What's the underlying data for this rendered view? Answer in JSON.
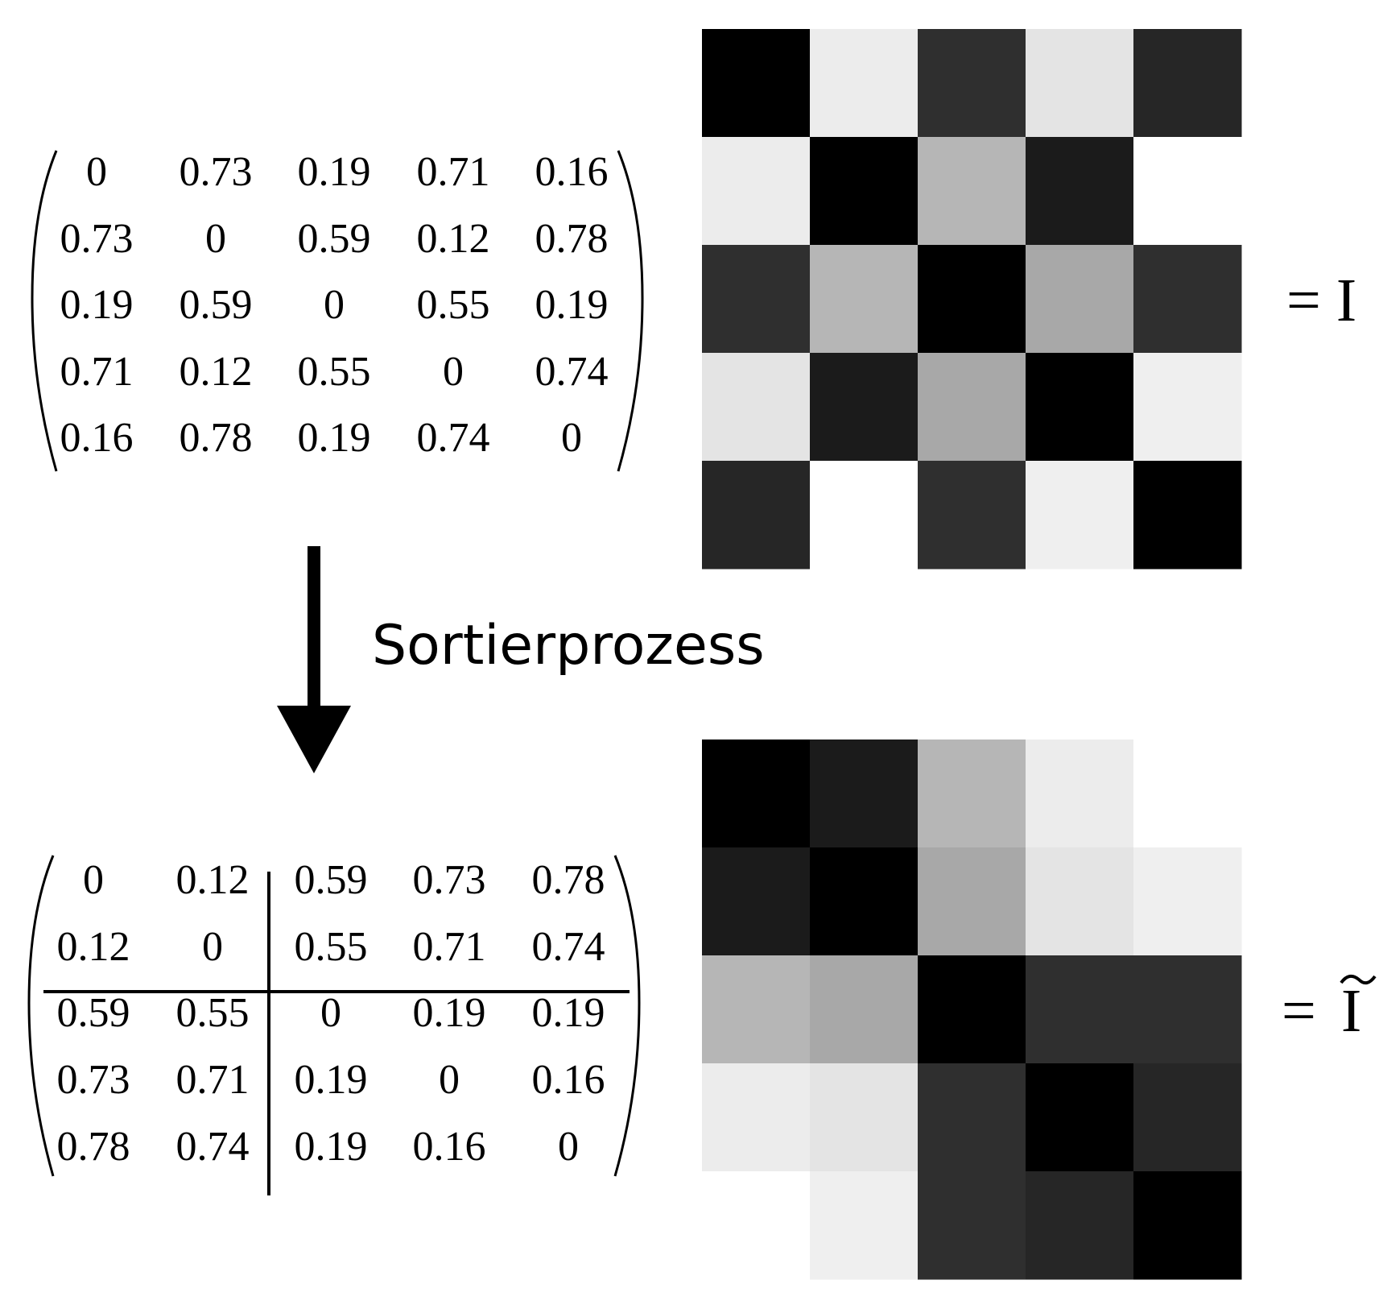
{
  "top_matrix": {
    "rows": [
      [
        "0",
        "0.73",
        "0.19",
        "0.71",
        "0.16"
      ],
      [
        "0.73",
        "0",
        "0.59",
        "0.12",
        "0.78"
      ],
      [
        "0.19",
        "0.59",
        "0",
        "0.55",
        "0.19"
      ],
      [
        "0.71",
        "0.12",
        "0.55",
        "0",
        "0.74"
      ],
      [
        "0.16",
        "0.78",
        "0.19",
        "0.74",
        "0"
      ]
    ]
  },
  "bottom_matrix": {
    "rows": [
      [
        "0",
        "0.12",
        "0.59",
        "0.73",
        "0.78"
      ],
      [
        "0.12",
        "0",
        "0.55",
        "0.71",
        "0.74"
      ],
      [
        "0.59",
        "0.55",
        "0",
        "0.19",
        "0.19"
      ],
      [
        "0.73",
        "0.71",
        "0.19",
        "0",
        "0.16"
      ],
      [
        "0.78",
        "0.74",
        "0.19",
        "0.16",
        "0"
      ]
    ],
    "partition_after_row": 2,
    "partition_after_col": 2
  },
  "arrow_label": "Sortierprozess",
  "top_equation": "= I",
  "bottom_equation_prefix": "=",
  "bottom_equation_symbol": "I",
  "colors": {
    "cell_dark": "#000000",
    "cell_light": "#ffffff",
    "stroke": "#000000"
  }
}
